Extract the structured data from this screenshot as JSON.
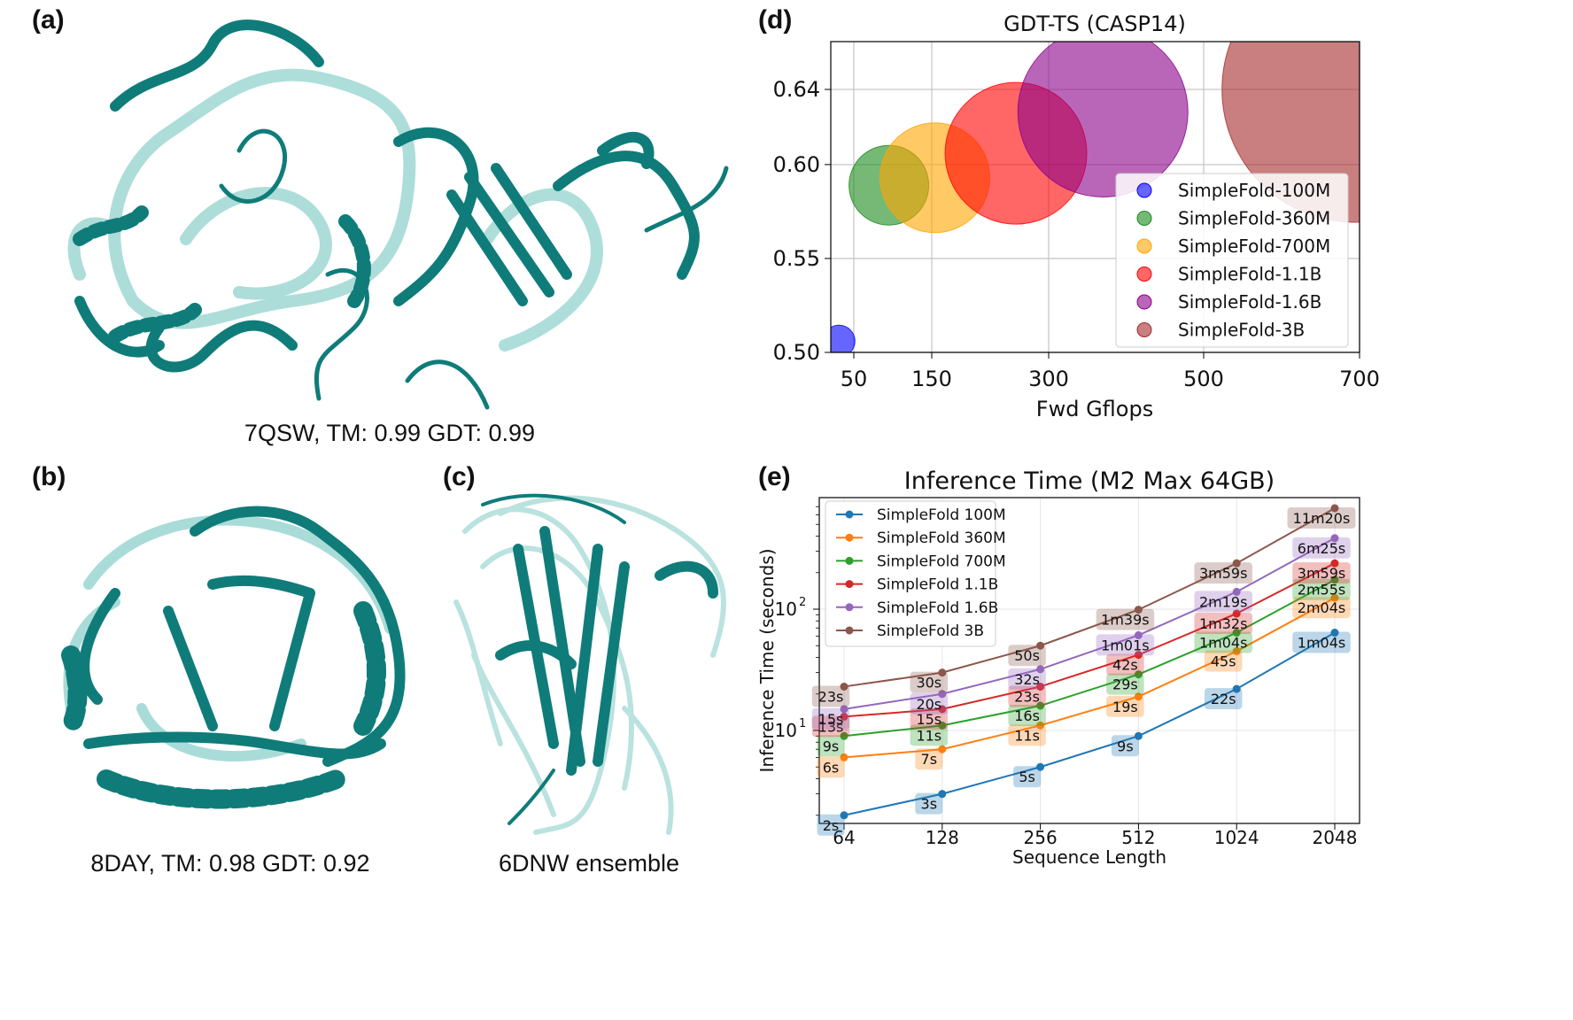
{
  "panels": {
    "a": {
      "label": "(a)",
      "caption": "7QSW, TM: 0.99 GDT: 0.99"
    },
    "b": {
      "label": "(b)",
      "caption": "8DAY, TM: 0.98 GDT: 0.92"
    },
    "c": {
      "label": "(c)",
      "caption": "6DNW ensemble"
    },
    "d": {
      "label": "(d)"
    },
    "e": {
      "label": "(e)"
    }
  },
  "colors": {
    "protein_dark": "#0f7c7a",
    "protein_light": "#a9dcd8"
  },
  "chart_data": [
    {
      "type": "scatter",
      "title": "GDT-TS (CASP14)",
      "xlabel": "Fwd Gflops",
      "ylabel": "",
      "x_ticks": [
        "50",
        "150",
        "300",
        "500",
        "700"
      ],
      "y_ticks": [
        "0.50",
        "0.55",
        "0.60",
        "0.64"
      ],
      "grid": true,
      "legend_position": "lower-right",
      "series": [
        {
          "name": "SimpleFold-100M",
          "x": 31,
          "y": 0.506,
          "color": "#0000ff"
        },
        {
          "name": "SimpleFold-360M",
          "x": 95,
          "y": 0.589,
          "color": "#1a8a1a"
        },
        {
          "name": "SimpleFold-700M",
          "x": 154,
          "y": 0.593,
          "color": "#ffa500"
        },
        {
          "name": "SimpleFold-1.1B",
          "x": 258,
          "y": 0.606,
          "color": "#ff0000"
        },
        {
          "name": "SimpleFold-1.6B",
          "x": 370,
          "y": 0.628,
          "color": "#8b008b"
        },
        {
          "name": "SimpleFold-3B",
          "x": 694,
          "y": 0.64,
          "color": "#a52a2a"
        }
      ]
    },
    {
      "type": "line",
      "title": "Inference Time (M2 Max 64GB)",
      "xlabel": "Sequence Length",
      "ylabel": "Inference Time (seconds)",
      "x": [
        64,
        128,
        256,
        512,
        1024,
        2048
      ],
      "x_ticks": [
        "64",
        "128",
        "256",
        "512",
        "1024",
        "2048"
      ],
      "y_ticks": [
        "10",
        "10"
      ],
      "y_tick_exponents": [
        "1",
        "2"
      ],
      "y_scale": "log",
      "grid": true,
      "legend_position": "upper-left",
      "series": [
        {
          "name": "SimpleFold 100M",
          "values": [
            2,
            3,
            5,
            9,
            22,
            64
          ],
          "labels": [
            "2s",
            "3s",
            "5s",
            "9s",
            "22s",
            "1m04s"
          ],
          "color": "#1f77b4"
        },
        {
          "name": "SimpleFold 360M",
          "values": [
            6,
            7,
            11,
            19,
            45,
            124
          ],
          "labels": [
            "6s",
            "7s",
            "11s",
            "19s",
            "45s",
            "2m04s"
          ],
          "color": "#ff7f0e"
        },
        {
          "name": "SimpleFold 700M",
          "values": [
            9,
            11,
            16,
            29,
            64,
            175
          ],
          "labels": [
            "9s",
            "11s",
            "16s",
            "29s",
            "1m04s",
            "2m55s"
          ],
          "color": "#2ca02c"
        },
        {
          "name": "SimpleFold 1.1B",
          "values": [
            13,
            15,
            23,
            42,
            92,
            239
          ],
          "labels": [
            "13s",
            "15s",
            "23s",
            "42s",
            "1m32s",
            "3m59s"
          ],
          "color": "#d62728"
        },
        {
          "name": "SimpleFold 1.6B",
          "values": [
            15,
            20,
            32,
            61,
            139,
            385
          ],
          "labels": [
            "15s",
            "20s",
            "32s",
            "1m01s",
            "2m19s",
            "6m25s"
          ],
          "color": "#9467bd"
        },
        {
          "name": "SimpleFold 3B",
          "values": [
            23,
            30,
            50,
            99,
            239,
            680
          ],
          "labels": [
            "23s",
            "30s",
            "50s",
            "1m39s",
            "3m59s",
            "11m20s"
          ],
          "color": "#8c564b"
        }
      ]
    }
  ]
}
